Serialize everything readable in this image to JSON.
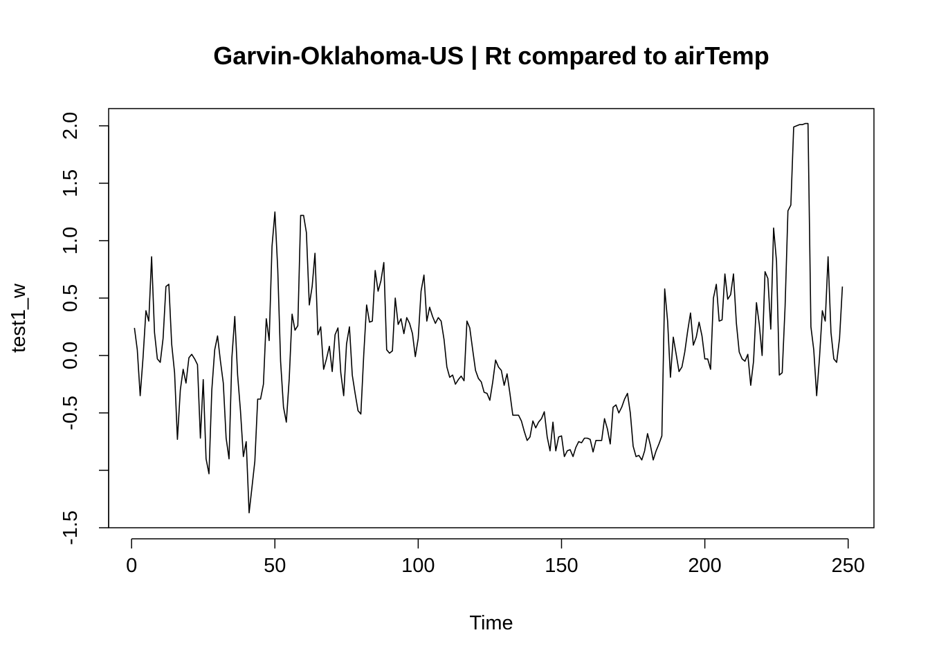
{
  "chart_data": {
    "type": "line",
    "title": "Garvin-Oklahoma-US | Rt compared to airTemp",
    "xlabel": "Time",
    "ylabel": "test1_w",
    "xlim": [
      -8,
      259
    ],
    "ylim": [
      -1.5,
      2.15
    ],
    "x_ticks": [
      0,
      50,
      100,
      150,
      200,
      250
    ],
    "x_tick_labels": [
      "0",
      "50",
      "100",
      "150",
      "200",
      "250"
    ],
    "y_ticks": [
      -1.5,
      -1.0,
      -0.5,
      0.0,
      0.5,
      1.0,
      1.5,
      2.0
    ],
    "y_tick_labels": [
      "-1.5",
      "",
      "-0.5",
      "0.0",
      "0.5",
      "1.0",
      "1.5",
      "2.0"
    ],
    "grid": false,
    "legend": "none",
    "series": [
      {
        "color": "#000000",
        "x_start": 1,
        "values": [
          0.24,
          0.05,
          -0.35,
          -0.02,
          0.39,
          0.3,
          0.86,
          0.2,
          -0.03,
          -0.06,
          0.15,
          0.6,
          0.62,
          0.1,
          -0.15,
          -0.73,
          -0.3,
          -0.12,
          -0.24,
          -0.02,
          0.01,
          -0.03,
          -0.08,
          -0.72,
          -0.21,
          -0.9,
          -1.03,
          -0.3,
          0.05,
          0.17,
          -0.05,
          -0.24,
          -0.72,
          -0.9,
          -0.02,
          0.34,
          -0.17,
          -0.48,
          -0.88,
          -0.75,
          -1.37,
          -1.15,
          -0.92,
          -0.38,
          -0.38,
          -0.25,
          0.32,
          0.13,
          0.95,
          1.25,
          0.75,
          -0.05,
          -0.45,
          -0.58,
          -0.2,
          0.36,
          0.22,
          0.26,
          1.22,
          1.22,
          1.07,
          0.44,
          0.6,
          0.89,
          0.18,
          0.25,
          -0.12,
          -0.03,
          0.08,
          -0.14,
          0.18,
          0.24,
          -0.15,
          -0.35,
          0.1,
          0.25,
          -0.17,
          -0.33,
          -0.48,
          -0.51,
          0.01,
          0.44,
          0.29,
          0.3,
          0.74,
          0.56,
          0.65,
          0.81,
          0.05,
          0.02,
          0.04,
          0.5,
          0.27,
          0.32,
          0.19,
          0.33,
          0.28,
          0.19,
          -0.01,
          0.15,
          0.56,
          0.7,
          0.3,
          0.42,
          0.34,
          0.28,
          0.33,
          0.3,
          0.14,
          -0.1,
          -0.19,
          -0.17,
          -0.25,
          -0.21,
          -0.18,
          -0.22,
          0.3,
          0.24,
          0.05,
          -0.13,
          -0.2,
          -0.23,
          -0.32,
          -0.33,
          -0.39,
          -0.23,
          -0.04,
          -0.1,
          -0.13,
          -0.26,
          -0.16,
          -0.33,
          -0.52,
          -0.52,
          -0.52,
          -0.57,
          -0.66,
          -0.74,
          -0.71,
          -0.57,
          -0.63,
          -0.58,
          -0.55,
          -0.49,
          -0.71,
          -0.83,
          -0.58,
          -0.83,
          -0.71,
          -0.7,
          -0.88,
          -0.83,
          -0.82,
          -0.88,
          -0.8,
          -0.75,
          -0.76,
          -0.72,
          -0.72,
          -0.73,
          -0.84,
          -0.74,
          -0.74,
          -0.74,
          -0.55,
          -0.64,
          -0.77,
          -0.45,
          -0.43,
          -0.5,
          -0.45,
          -0.38,
          -0.33,
          -0.5,
          -0.79,
          -0.88,
          -0.87,
          -0.91,
          -0.83,
          -0.68,
          -0.78,
          -0.91,
          -0.83,
          -0.77,
          -0.7,
          0.58,
          0.3,
          -0.19,
          0.16,
          0.01,
          -0.14,
          -0.1,
          0.03,
          0.21,
          0.37,
          0.09,
          0.16,
          0.29,
          0.17,
          -0.03,
          -0.03,
          -0.12,
          0.5,
          0.62,
          0.3,
          0.31,
          0.71,
          0.49,
          0.53,
          0.71,
          0.28,
          0.03,
          -0.03,
          -0.05,
          0.01,
          -0.26,
          -0.05,
          0.46,
          0.27,
          0.0,
          0.73,
          0.67,
          0.23,
          1.11,
          0.82,
          -0.17,
          -0.15,
          0.43,
          1.26,
          1.31,
          1.99,
          2.0,
          2.01,
          2.01,
          2.02,
          2.02,
          0.25,
          0.05,
          -0.35,
          -0.02,
          0.39,
          0.3,
          0.86,
          0.2,
          -0.03,
          -0.06,
          0.15,
          0.6
        ]
      }
    ]
  }
}
